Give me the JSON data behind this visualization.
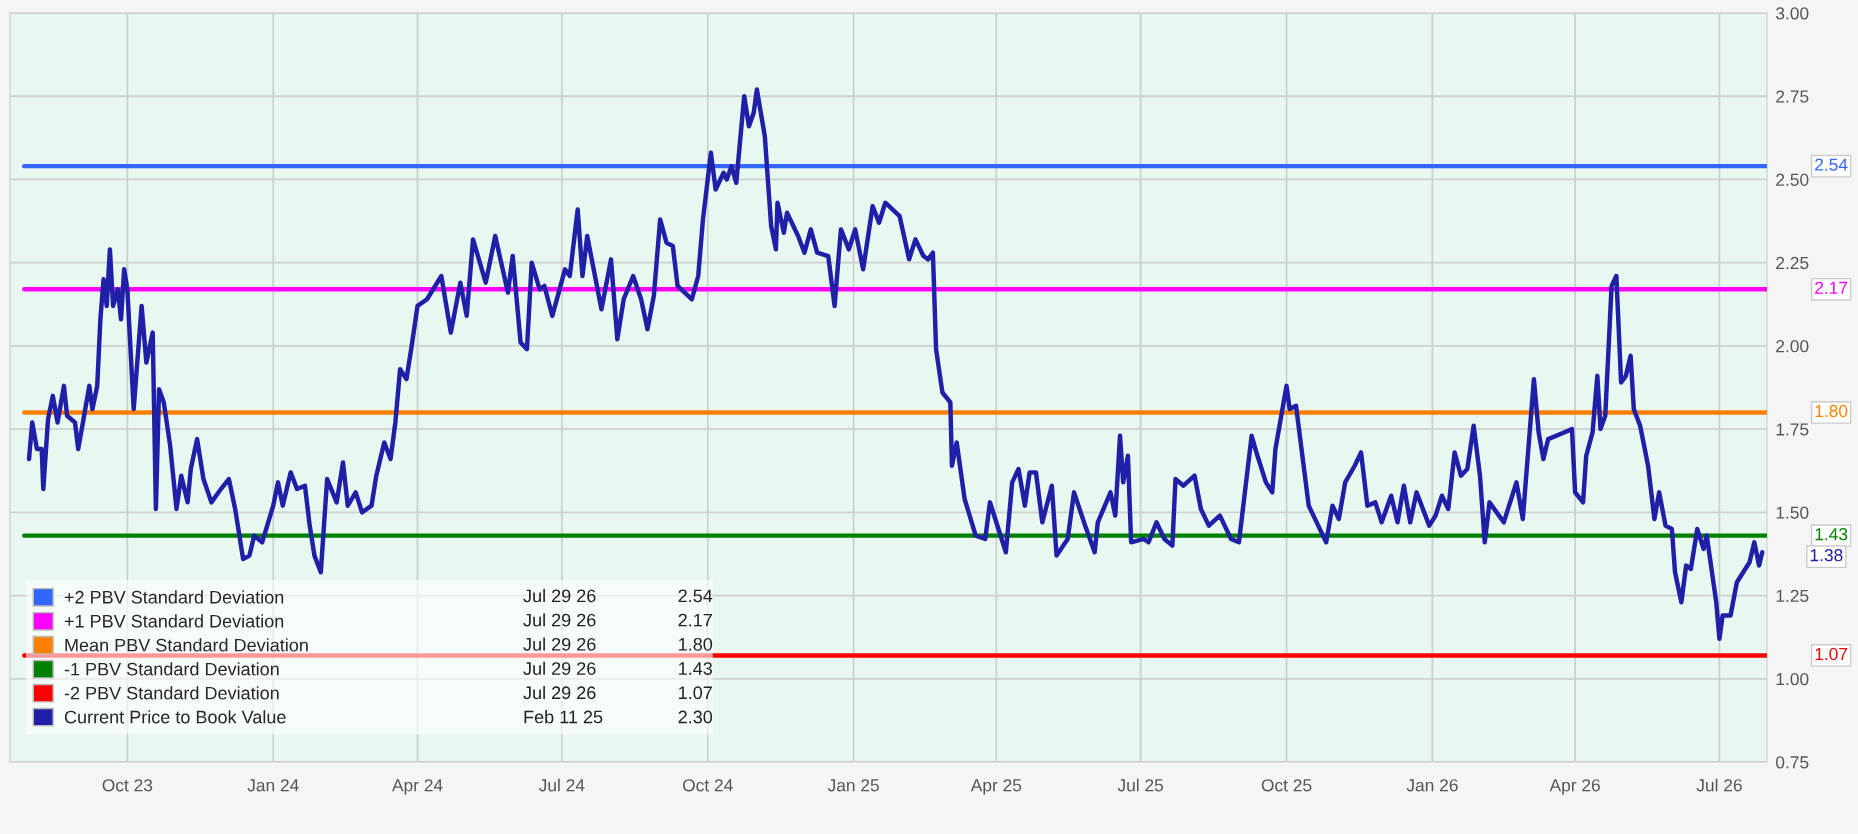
{
  "chart_data": {
    "type": "line",
    "xlim": [
      "2023-07-19",
      "2026-07-31"
    ],
    "xticks": [
      {
        "value": "2023-10-01",
        "label": "Oct 23"
      },
      {
        "value": "2024-01-01",
        "label": "Jan 24"
      },
      {
        "value": "2024-04-01",
        "label": "Apr 24"
      },
      {
        "value": "2024-07-01",
        "label": "Jul 24"
      },
      {
        "value": "2024-10-01",
        "label": "Oct 24"
      },
      {
        "value": "2025-01-01",
        "label": "Jan 25"
      },
      {
        "value": "2025-04-01",
        "label": "Apr 25"
      },
      {
        "value": "2025-07-01",
        "label": "Jul 25"
      },
      {
        "value": "2025-10-01",
        "label": "Oct 25"
      },
      {
        "value": "2026-01-01",
        "label": "Jan 26"
      },
      {
        "value": "2026-04-01",
        "label": "Apr 26"
      },
      {
        "value": "2026-07-01",
        "label": "Jul 26"
      }
    ],
    "ylim": [
      0.75,
      3.0
    ],
    "yticks": [
      {
        "value": 0.75,
        "label": "0.75"
      },
      {
        "value": 1.0,
        "label": "1.00"
      },
      {
        "value": 1.25,
        "label": "1.25"
      },
      {
        "value": 1.5,
        "label": "1.50"
      },
      {
        "value": 1.75,
        "label": "1.75"
      },
      {
        "value": 2.0,
        "label": "2.00"
      },
      {
        "value": 2.25,
        "label": "2.25"
      },
      {
        "value": 2.5,
        "label": "2.50"
      },
      {
        "value": 2.75,
        "label": "2.75"
      },
      {
        "value": 3.0,
        "label": "3.00"
      }
    ],
    "grid": true,
    "legend": "bottom left",
    "annotations": [
      "Jul 29 26",
      "2.54",
      "Jul 29 26",
      "2.17",
      "Jul 29 26",
      "1.80",
      "Jul 29 26",
      "1.43",
      "Jul 29 26",
      "1.07",
      "Feb 11 25",
      "2.30",
      {
        "text": "2.54",
        "x": "2026-07-31",
        "y": 2.54
      },
      {
        "text": "2.17",
        "x": "2026-07-31",
        "y": 2.17
      },
      {
        "text": "1.80",
        "x": "2026-07-31",
        "y": 1.8
      },
      {
        "text": "1.43",
        "x": "2026-07-31",
        "y": 1.43
      },
      {
        "text": "1.38",
        "x": "2026-07-28",
        "y": 1.38
      },
      {
        "text": "1.07",
        "x": "2026-07-31",
        "y": 1.07
      }
    ],
    "series": [
      {
        "name": "+2 PBV Standard Deviation",
        "color": "#3366ff",
        "x": [
          "2023-07-28",
          "2026-07-31"
        ],
        "values": [
          2.54,
          2.54
        ]
      },
      {
        "name": "+1 PBV Standard Deviation",
        "color": "#ff00ff",
        "x": [
          "2023-07-28",
          "2026-07-31"
        ],
        "values": [
          2.17,
          2.17
        ]
      },
      {
        "name": "Mean PBV Standard Deviation",
        "color": "#ff8000",
        "x": [
          "2023-07-28",
          "2026-07-31"
        ],
        "values": [
          1.8,
          1.8
        ]
      },
      {
        "name": "-1 PBV Standard Deviation",
        "color": "#008000",
        "x": [
          "2023-07-28",
          "2026-07-31"
        ],
        "values": [
          1.43,
          1.43
        ]
      },
      {
        "name": "-2 PBV Standard Deviation",
        "color": "#ff0000",
        "x": [
          "2023-07-28",
          "2026-07-31"
        ],
        "values": [
          1.07,
          1.07
        ]
      },
      {
        "name": "Current Price to Book Value",
        "color": "#1f1fa8",
        "x": [
          "2023-07-31",
          "2023-08-02",
          "2023-08-05",
          "2023-08-08",
          "2023-08-09",
          "2023-08-12",
          "2023-08-15",
          "2023-08-18",
          "2023-08-22",
          "2023-08-24",
          "2023-08-29",
          "2023-08-31",
          "2023-09-03",
          "2023-09-07",
          "2023-09-09",
          "2023-09-12",
          "2023-09-14",
          "2023-09-16",
          "2023-09-18",
          "2023-09-20",
          "2023-09-22",
          "2023-09-25",
          "2023-09-27",
          "2023-09-29",
          "2023-10-01",
          "2023-10-05",
          "2023-10-10",
          "2023-10-13",
          "2023-10-17",
          "2023-10-19",
          "2023-10-21",
          "2023-10-24",
          "2023-10-28",
          "2023-11-01",
          "2023-11-04",
          "2023-11-08",
          "2023-11-10",
          "2023-11-14",
          "2023-11-18",
          "2023-11-23",
          "2023-11-29",
          "2023-12-04",
          "2023-12-08",
          "2023-12-13",
          "2023-12-17",
          "2023-12-20",
          "2023-12-25",
          "2024-01-01",
          "2024-01-04",
          "2024-01-07",
          "2024-01-12",
          "2024-01-16",
          "2024-01-21",
          "2024-01-24",
          "2024-01-27",
          "2024-01-31",
          "2024-02-04",
          "2024-02-10",
          "2024-02-14",
          "2024-02-17",
          "2024-02-22",
          "2024-02-26",
          "2024-03-03",
          "2024-03-06",
          "2024-03-11",
          "2024-03-15",
          "2024-03-18",
          "2024-03-21",
          "2024-03-25",
          "2024-03-28",
          "2024-04-01",
          "2024-04-07",
          "2024-04-16",
          "2024-04-22",
          "2024-04-28",
          "2024-05-02",
          "2024-05-06",
          "2024-05-14",
          "2024-05-20",
          "2024-05-28",
          "2024-05-31",
          "2024-06-05",
          "2024-06-09",
          "2024-06-12",
          "2024-06-17",
          "2024-06-20",
          "2024-06-25",
          "2024-07-03",
          "2024-07-06",
          "2024-07-11",
          "2024-07-14",
          "2024-07-17",
          "2024-07-26",
          "2024-08-01",
          "2024-08-05",
          "2024-08-09",
          "2024-08-15",
          "2024-08-20",
          "2024-08-24",
          "2024-08-28",
          "2024-09-01",
          "2024-09-05",
          "2024-09-09",
          "2024-09-12",
          "2024-09-21",
          "2024-09-25",
          "2024-09-28",
          "2024-10-03",
          "2024-10-06",
          "2024-10-11",
          "2024-10-13",
          "2024-10-16",
          "2024-10-19",
          "2024-10-24",
          "2024-10-27",
          "2024-10-30",
          "2024-11-01",
          "2024-11-06",
          "2024-11-10",
          "2024-11-13",
          "2024-11-14",
          "2024-11-18",
          "2024-11-20",
          "2024-11-27",
          "2024-12-01",
          "2024-12-05",
          "2024-12-09",
          "2024-12-16",
          "2024-12-20",
          "2024-12-24",
          "2024-12-29",
          "2025-01-02",
          "2025-01-07",
          "2025-01-13",
          "2025-01-17",
          "2025-01-21",
          "2025-01-30",
          "2025-02-05",
          "2025-02-09",
          "2025-02-14",
          "2025-02-17",
          "2025-02-20",
          "2025-02-22",
          "2025-02-26",
          "2025-03-03",
          "2025-03-04",
          "2025-03-07",
          "2025-03-12",
          "2025-03-19",
          "2025-03-25",
          "2025-03-28",
          "2025-04-07",
          "2025-04-11",
          "2025-04-15",
          "2025-04-19",
          "2025-04-22",
          "2025-04-26",
          "2025-04-30",
          "2025-05-06",
          "2025-05-09",
          "2025-05-16",
          "2025-05-20",
          "2025-05-27",
          "2025-06-02",
          "2025-06-04",
          "2025-06-12",
          "2025-06-15",
          "2025-06-18",
          "2025-06-20",
          "2025-06-23",
          "2025-06-25",
          "2025-07-03",
          "2025-07-06",
          "2025-07-11",
          "2025-07-16",
          "2025-07-21",
          "2025-07-23",
          "2025-07-28",
          "2025-08-04",
          "2025-08-08",
          "2025-08-13",
          "2025-08-20",
          "2025-08-27",
          "2025-09-01",
          "2025-09-04",
          "2025-09-09",
          "2025-09-12",
          "2025-09-18",
          "2025-09-22",
          "2025-09-24",
          "2025-10-01",
          "2025-10-03",
          "2025-10-07",
          "2025-10-11",
          "2025-10-15",
          "2025-10-21",
          "2025-10-26",
          "2025-10-30",
          "2025-11-03",
          "2025-11-07",
          "2025-11-13",
          "2025-11-17",
          "2025-11-21",
          "2025-11-26",
          "2025-11-30",
          "2025-12-06",
          "2025-12-10",
          "2025-12-14",
          "2025-12-18",
          "2025-12-22",
          "2025-12-30",
          "2026-01-03",
          "2026-01-07",
          "2026-01-11",
          "2026-01-15",
          "2026-01-19",
          "2026-01-23",
          "2026-01-27",
          "2026-01-31",
          "2026-02-03",
          "2026-02-06",
          "2026-02-12",
          "2026-02-15",
          "2026-02-23",
          "2026-02-27",
          "2026-03-06",
          "2026-03-09",
          "2026-03-12",
          "2026-03-15",
          "2026-03-25",
          "2026-03-30",
          "2026-04-01",
          "2026-04-06",
          "2026-04-08",
          "2026-04-12",
          "2026-04-15",
          "2026-04-17",
          "2026-04-20",
          "2026-04-24",
          "2026-04-27",
          "2026-04-30",
          "2026-05-03",
          "2026-05-06",
          "2026-05-08",
          "2026-05-12",
          "2026-05-17",
          "2026-05-21",
          "2026-05-24",
          "2026-05-28",
          "2026-06-01",
          "2026-06-03",
          "2026-06-07",
          "2026-06-10",
          "2026-06-13",
          "2026-06-17",
          "2026-06-21",
          "2026-06-23",
          "2026-06-29",
          "2026-07-01",
          "2026-07-03",
          "2026-07-08",
          "2026-07-12",
          "2026-07-16",
          "2026-07-20",
          "2026-07-23",
          "2026-07-26",
          "2026-07-28"
        ],
        "values": [
          1.66,
          1.77,
          1.69,
          1.69,
          1.57,
          1.78,
          1.85,
          1.77,
          1.88,
          1.79,
          1.77,
          1.69,
          1.77,
          1.88,
          1.81,
          1.88,
          2.08,
          2.2,
          2.12,
          2.29,
          2.12,
          2.17,
          2.08,
          2.23,
          2.17,
          1.81,
          2.12,
          1.95,
          2.04,
          1.51,
          1.87,
          1.83,
          1.7,
          1.51,
          1.61,
          1.53,
          1.63,
          1.72,
          1.6,
          1.53,
          1.57,
          1.6,
          1.51,
          1.36,
          1.37,
          1.43,
          1.41,
          1.52,
          1.59,
          1.52,
          1.62,
          1.57,
          1.58,
          1.46,
          1.37,
          1.32,
          1.6,
          1.53,
          1.65,
          1.52,
          1.56,
          1.5,
          1.52,
          1.61,
          1.71,
          1.66,
          1.77,
          1.93,
          1.9,
          1.99,
          2.12,
          2.14,
          2.21,
          2.04,
          2.19,
          2.09,
          2.32,
          2.19,
          2.33,
          2.16,
          2.27,
          2.01,
          1.99,
          2.25,
          2.17,
          2.18,
          2.09,
          2.23,
          2.21,
          2.41,
          2.21,
          2.33,
          2.11,
          2.26,
          2.02,
          2.14,
          2.21,
          2.14,
          2.05,
          2.15,
          2.38,
          2.31,
          2.3,
          2.18,
          2.14,
          2.21,
          2.38,
          2.58,
          2.47,
          2.52,
          2.5,
          2.54,
          2.49,
          2.75,
          2.66,
          2.7,
          2.77,
          2.63,
          2.36,
          2.29,
          2.43,
          2.34,
          2.4,
          2.33,
          2.28,
          2.35,
          2.28,
          2.27,
          2.12,
          2.35,
          2.29,
          2.35,
          2.23,
          2.42,
          2.37,
          2.43,
          2.39,
          2.26,
          2.32,
          2.27,
          2.26,
          2.28,
          1.99,
          1.86,
          1.83,
          1.64,
          1.71,
          1.54,
          1.43,
          1.42,
          1.53,
          1.38,
          1.59,
          1.63,
          1.52,
          1.62,
          1.62,
          1.47,
          1.58,
          1.37,
          1.42,
          1.56,
          1.46,
          1.38,
          1.47,
          1.56,
          1.49,
          1.73,
          1.59,
          1.67,
          1.41,
          1.42,
          1.41,
          1.47,
          1.42,
          1.4,
          1.6,
          1.58,
          1.61,
          1.51,
          1.46,
          1.49,
          1.42,
          1.41,
          1.53,
          1.73,
          1.68,
          1.59,
          1.56,
          1.69,
          1.88,
          1.81,
          1.82,
          1.67,
          1.52,
          1.46,
          1.41,
          1.52,
          1.48,
          1.59,
          1.64,
          1.68,
          1.52,
          1.53,
          1.47,
          1.55,
          1.47,
          1.58,
          1.47,
          1.56,
          1.46,
          1.49,
          1.55,
          1.51,
          1.68,
          1.61,
          1.63,
          1.76,
          1.61,
          1.41,
          1.53,
          1.49,
          1.47,
          1.59,
          1.48,
          1.9,
          1.74,
          1.66,
          1.72,
          1.74,
          1.75,
          1.56,
          1.53,
          1.67,
          1.74,
          1.91,
          1.75,
          1.79,
          2.18,
          2.21,
          1.89,
          1.91,
          1.97,
          1.81,
          1.76,
          1.64,
          1.48,
          1.56,
          1.46,
          1.45,
          1.32,
          1.23,
          1.34,
          1.33,
          1.45,
          1.39,
          1.43,
          1.23,
          1.12,
          1.19,
          1.19,
          1.29,
          1.32,
          1.35,
          1.41,
          1.34,
          1.38
        ]
      }
    ]
  }
}
